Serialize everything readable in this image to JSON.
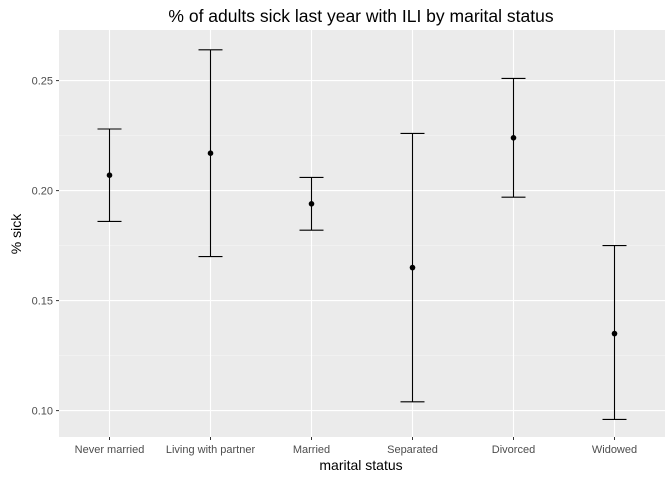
{
  "chart_data": {
    "type": "scatter",
    "title": "% of adults sick last year with ILI by marital status",
    "xlabel": "marital status",
    "ylabel": "% sick",
    "categories": [
      "Never married",
      "Living with partner",
      "Married",
      "Separated",
      "Divorced",
      "Widowed"
    ],
    "estimates": [
      0.207,
      0.217,
      0.194,
      0.165,
      0.224,
      0.135
    ],
    "lower": [
      0.186,
      0.17,
      0.182,
      0.104,
      0.197,
      0.096
    ],
    "upper": [
      0.228,
      0.264,
      0.206,
      0.226,
      0.251,
      0.175
    ],
    "ylim": [
      0.088,
      0.273
    ],
    "yticks": [
      0.1,
      0.15,
      0.2,
      0.25
    ],
    "ytick_labels": [
      "0.10",
      "0.15",
      "0.20",
      "0.25"
    ],
    "grid": true,
    "legend": "none",
    "colors": {
      "panel": "#ebebeb",
      "grid_major": "#ffffff",
      "grid_minor": "#f5f5f5",
      "point": "#000000",
      "errorbar": "#000000",
      "tick_text": "#4d4d4d"
    }
  }
}
